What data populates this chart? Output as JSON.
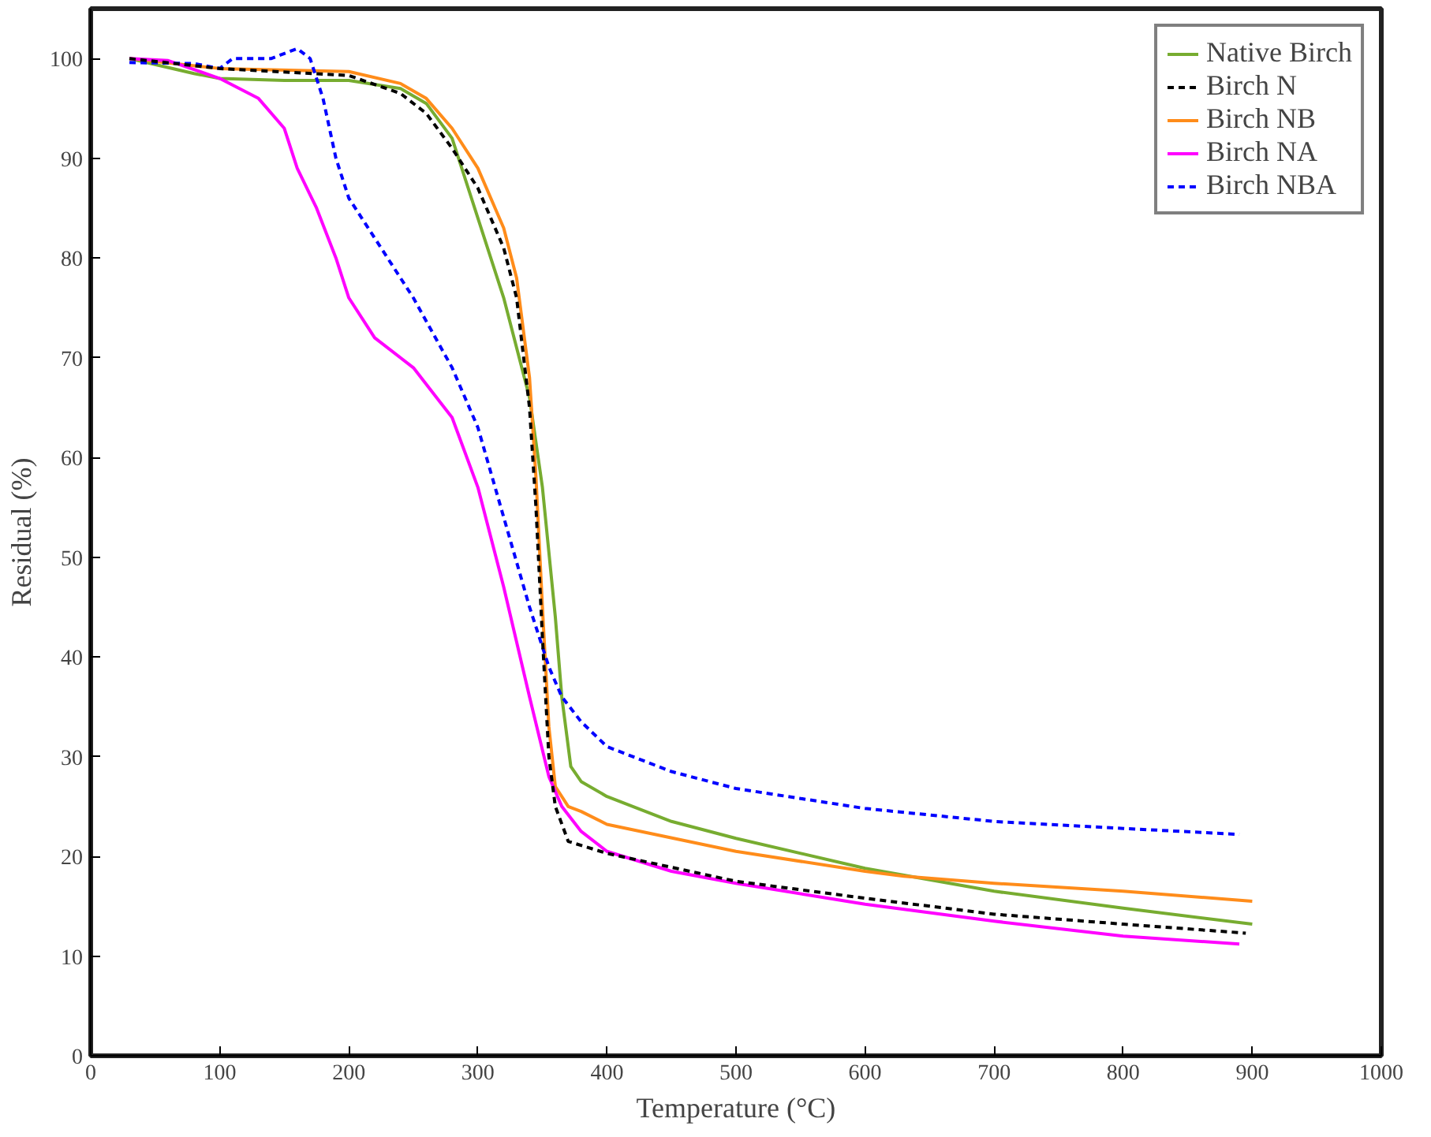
{
  "chart_data": {
    "type": "line",
    "xlabel": "Temperature (°C)",
    "ylabel": "Residual (%)",
    "xlim": [
      0,
      1000
    ],
    "xticks": [
      0,
      100,
      200,
      300,
      400,
      500,
      600,
      700,
      800,
      900,
      1000
    ],
    "ylim": [
      0,
      105
    ],
    "yticks": [
      0,
      10,
      20,
      30,
      40,
      50,
      60,
      70,
      80,
      90,
      100
    ],
    "grid": false,
    "legend": "top right",
    "series": [
      {
        "name": "Native Birch",
        "color": "#77ac30",
        "line_style": "solid",
        "x": [
          30,
          80,
          100,
          150,
          200,
          240,
          260,
          280,
          300,
          320,
          340,
          350,
          360,
          365,
          372,
          380,
          400,
          450,
          500,
          600,
          700,
          800,
          900
        ],
        "values": [
          100,
          98.5,
          98,
          97.8,
          97.8,
          97,
          95.5,
          92,
          84,
          76,
          66,
          57,
          44,
          36,
          29,
          27.5,
          26,
          23.5,
          21.8,
          18.8,
          16.5,
          14.8,
          13.2
        ]
      },
      {
        "name": "Birch N",
        "color": "#000000",
        "line_style": "dashed",
        "x": [
          30,
          100,
          200,
          240,
          260,
          280,
          300,
          320,
          330,
          340,
          345,
          350,
          355,
          360,
          370,
          400,
          500,
          600,
          700,
          800,
          895
        ],
        "values": [
          100,
          99,
          98.3,
          96.5,
          94.5,
          91,
          87,
          81,
          76,
          65,
          55,
          42,
          30,
          25,
          21.5,
          20.3,
          17.5,
          15.8,
          14.2,
          13.2,
          12.3
        ]
      },
      {
        "name": "Birch NB",
        "color": "#ff8c1a",
        "line_style": "solid",
        "x": [
          30,
          100,
          200,
          240,
          260,
          280,
          300,
          320,
          330,
          340,
          345,
          350,
          355,
          360,
          370,
          380,
          400,
          500,
          600,
          630,
          700,
          800,
          900
        ],
        "values": [
          100,
          99,
          98.7,
          97.5,
          96,
          93,
          89,
          83,
          78,
          68,
          58,
          45,
          33,
          27,
          25,
          24.5,
          23.2,
          20.5,
          18.5,
          18,
          17.3,
          16.5,
          15.5
        ]
      },
      {
        "name": "Birch NA",
        "color": "#ff00ff",
        "line_style": "solid",
        "x": [
          30,
          60,
          100,
          130,
          150,
          160,
          175,
          190,
          200,
          220,
          250,
          280,
          300,
          320,
          340,
          355,
          365,
          380,
          400,
          450,
          500,
          600,
          700,
          800,
          890
        ],
        "values": [
          100,
          99.8,
          98,
          96,
          93,
          89,
          85,
          80,
          76,
          72,
          69,
          64,
          57,
          47,
          36,
          28,
          25,
          22.5,
          20.5,
          18.5,
          17.3,
          15.2,
          13.5,
          12,
          11.2
        ]
      },
      {
        "name": "Birch NBA",
        "color": "#0000ff",
        "line_style": "dashed",
        "x": [
          30,
          80,
          100,
          110,
          140,
          160,
          170,
          180,
          190,
          200,
          220,
          250,
          280,
          300,
          320,
          340,
          355,
          365,
          380,
          400,
          450,
          500,
          600,
          700,
          800,
          890
        ],
        "values": [
          99.6,
          99.5,
          99,
          100,
          100,
          101,
          100,
          96,
          90,
          86,
          82,
          76,
          69,
          63,
          54,
          45,
          39,
          36,
          33.5,
          31,
          28.5,
          26.8,
          24.8,
          23.5,
          22.8,
          22.2
        ]
      }
    ]
  }
}
